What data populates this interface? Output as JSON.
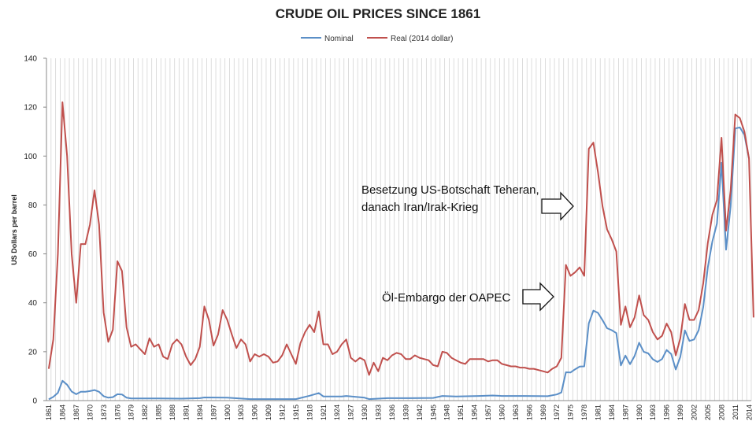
{
  "chart_data": {
    "type": "line",
    "title": "CRUDE OIL PRICES SINCE 1861",
    "ylabel": "US Dollars per barrel",
    "xlabel": "",
    "ylim": [
      0,
      140
    ],
    "yticks": [
      0,
      20,
      40,
      60,
      80,
      100,
      120,
      140
    ],
    "xlim": [
      1861,
      2014
    ],
    "xticks": [
      1861,
      1864,
      1867,
      1870,
      1873,
      1876,
      1879,
      1882,
      1885,
      1888,
      1891,
      1894,
      1897,
      1900,
      1903,
      1906,
      1909,
      1912,
      1915,
      1918,
      1921,
      1924,
      1927,
      1930,
      1933,
      1936,
      1939,
      1942,
      1945,
      1948,
      1951,
      1954,
      1957,
      1960,
      1963,
      1966,
      1969,
      1972,
      1975,
      1978,
      1981,
      1984,
      1987,
      1990,
      1993,
      1996,
      1999,
      2002,
      2005,
      2008,
      2011,
      2014
    ],
    "grid": "vertical",
    "legend_position": "top",
    "series": [
      {
        "name": "Nominal",
        "color": "#5b8fc7",
        "points": [
          [
            1861,
            0.5
          ],
          [
            1862,
            1.5
          ],
          [
            1863,
            3.2
          ],
          [
            1864,
            8.1
          ],
          [
            1865,
            6.5
          ],
          [
            1866,
            3.7
          ],
          [
            1867,
            2.6
          ],
          [
            1868,
            3.6
          ],
          [
            1869,
            3.6
          ],
          [
            1870,
            3.9
          ],
          [
            1871,
            4.3
          ],
          [
            1872,
            3.6
          ],
          [
            1873,
            1.8
          ],
          [
            1874,
            1.2
          ],
          [
            1875,
            1.4
          ],
          [
            1876,
            2.6
          ],
          [
            1877,
            2.5
          ],
          [
            1878,
            1.2
          ],
          [
            1879,
            0.9
          ],
          [
            1880,
            0.9
          ],
          [
            1885,
            0.9
          ],
          [
            1890,
            0.8
          ],
          [
            1894,
            1.0
          ],
          [
            1895,
            1.3
          ],
          [
            1900,
            1.2
          ],
          [
            1905,
            0.6
          ],
          [
            1910,
            0.6
          ],
          [
            1915,
            0.6
          ],
          [
            1918,
            2.0
          ],
          [
            1920,
            3.1
          ],
          [
            1921,
            1.7
          ],
          [
            1925,
            1.7
          ],
          [
            1926,
            1.9
          ],
          [
            1930,
            1.2
          ],
          [
            1931,
            0.6
          ],
          [
            1935,
            1.0
          ],
          [
            1940,
            1.0
          ],
          [
            1945,
            1.1
          ],
          [
            1947,
            1.9
          ],
          [
            1950,
            1.7
          ],
          [
            1955,
            1.9
          ],
          [
            1958,
            2.1
          ],
          [
            1960,
            1.9
          ],
          [
            1965,
            1.9
          ],
          [
            1970,
            1.8
          ],
          [
            1972,
            2.5
          ],
          [
            1973,
            3.3
          ],
          [
            1974,
            11.6
          ],
          [
            1975,
            11.5
          ],
          [
            1976,
            12.8
          ],
          [
            1977,
            13.9
          ],
          [
            1978,
            14.0
          ],
          [
            1979,
            31.6
          ],
          [
            1980,
            36.8
          ],
          [
            1981,
            35.9
          ],
          [
            1982,
            32.9
          ],
          [
            1983,
            29.6
          ],
          [
            1984,
            28.8
          ],
          [
            1985,
            27.6
          ],
          [
            1986,
            14.4
          ],
          [
            1987,
            18.4
          ],
          [
            1988,
            14.9
          ],
          [
            1989,
            18.2
          ],
          [
            1990,
            23.7
          ],
          [
            1991,
            20.0
          ],
          [
            1992,
            19.3
          ],
          [
            1993,
            16.9
          ],
          [
            1994,
            15.8
          ],
          [
            1995,
            17.0
          ],
          [
            1996,
            20.7
          ],
          [
            1997,
            19.1
          ],
          [
            1998,
            12.7
          ],
          [
            1999,
            17.9
          ],
          [
            2000,
            28.7
          ],
          [
            2001,
            24.4
          ],
          [
            2002,
            25.0
          ],
          [
            2003,
            28.8
          ],
          [
            2004,
            38.3
          ],
          [
            2005,
            54.5
          ],
          [
            2006,
            65.1
          ],
          [
            2007,
            72.4
          ],
          [
            2008,
            97.3
          ],
          [
            2009,
            61.7
          ],
          [
            2010,
            79.5
          ],
          [
            2011,
            111.3
          ],
          [
            2012,
            111.7
          ],
          [
            2013,
            108.7
          ],
          [
            2014,
            99.0
          ]
        ]
      },
      {
        "name": "Real (2014 dollar)",
        "color": "#c0504d",
        "points": [
          [
            1861,
            13
          ],
          [
            1862,
            25
          ],
          [
            1863,
            60
          ],
          [
            1864,
            122
          ],
          [
            1865,
            100
          ],
          [
            1866,
            60
          ],
          [
            1867,
            40
          ],
          [
            1868,
            64
          ],
          [
            1869,
            64
          ],
          [
            1870,
            72
          ],
          [
            1871,
            86
          ],
          [
            1872,
            72
          ],
          [
            1873,
            36
          ],
          [
            1874,
            24
          ],
          [
            1875,
            29
          ],
          [
            1876,
            57
          ],
          [
            1877,
            53
          ],
          [
            1878,
            30
          ],
          [
            1879,
            22
          ],
          [
            1880,
            23
          ],
          [
            1881,
            21
          ],
          [
            1882,
            19
          ],
          [
            1883,
            25.5
          ],
          [
            1884,
            22
          ],
          [
            1885,
            23
          ],
          [
            1886,
            18
          ],
          [
            1887,
            17
          ],
          [
            1888,
            23
          ],
          [
            1889,
            25
          ],
          [
            1890,
            23
          ],
          [
            1891,
            18
          ],
          [
            1892,
            14.5
          ],
          [
            1893,
            17
          ],
          [
            1894,
            22
          ],
          [
            1895,
            38.5
          ],
          [
            1896,
            33
          ],
          [
            1897,
            22.5
          ],
          [
            1898,
            27
          ],
          [
            1899,
            37
          ],
          [
            1900,
            33
          ],
          [
            1901,
            27
          ],
          [
            1902,
            21.5
          ],
          [
            1903,
            25
          ],
          [
            1904,
            23
          ],
          [
            1905,
            16
          ],
          [
            1906,
            19
          ],
          [
            1907,
            18
          ],
          [
            1908,
            19
          ],
          [
            1909,
            18
          ],
          [
            1910,
            15.5
          ],
          [
            1911,
            16
          ],
          [
            1912,
            18.5
          ],
          [
            1913,
            23
          ],
          [
            1914,
            19
          ],
          [
            1915,
            15
          ],
          [
            1916,
            23.5
          ],
          [
            1917,
            28
          ],
          [
            1918,
            31
          ],
          [
            1919,
            28
          ],
          [
            1920,
            36.5
          ],
          [
            1921,
            23
          ],
          [
            1922,
            23
          ],
          [
            1923,
            19
          ],
          [
            1924,
            20
          ],
          [
            1925,
            23
          ],
          [
            1926,
            25
          ],
          [
            1927,
            17.5
          ],
          [
            1928,
            16
          ],
          [
            1929,
            17.5
          ],
          [
            1930,
            16.5
          ],
          [
            1931,
            10.5
          ],
          [
            1932,
            15.5
          ],
          [
            1933,
            12
          ],
          [
            1934,
            17.5
          ],
          [
            1935,
            16.5
          ],
          [
            1936,
            18.5
          ],
          [
            1937,
            19.5
          ],
          [
            1938,
            19
          ],
          [
            1939,
            17
          ],
          [
            1940,
            17
          ],
          [
            1941,
            18.5
          ],
          [
            1942,
            17.5
          ],
          [
            1943,
            17
          ],
          [
            1944,
            16.5
          ],
          [
            1945,
            14.5
          ],
          [
            1946,
            14
          ],
          [
            1947,
            20
          ],
          [
            1948,
            19.5
          ],
          [
            1949,
            17.5
          ],
          [
            1950,
            16.5
          ],
          [
            1951,
            15.5
          ],
          [
            1952,
            15
          ],
          [
            1953,
            17
          ],
          [
            1954,
            17
          ],
          [
            1955,
            17
          ],
          [
            1956,
            17
          ],
          [
            1957,
            16
          ],
          [
            1958,
            16.5
          ],
          [
            1959,
            16.5
          ],
          [
            1960,
            15
          ],
          [
            1961,
            14.5
          ],
          [
            1962,
            14
          ],
          [
            1963,
            14
          ],
          [
            1964,
            13.5
          ],
          [
            1965,
            13.5
          ],
          [
            1966,
            13
          ],
          [
            1967,
            13
          ],
          [
            1968,
            12.5
          ],
          [
            1969,
            12
          ],
          [
            1970,
            11.5
          ],
          [
            1971,
            13
          ],
          [
            1972,
            14
          ],
          [
            1973,
            17.5
          ],
          [
            1974,
            55.5
          ],
          [
            1975,
            51
          ],
          [
            1976,
            52.5
          ],
          [
            1977,
            54.5
          ],
          [
            1978,
            51
          ],
          [
            1979,
            103
          ],
          [
            1980,
            105.5
          ],
          [
            1981,
            93.5
          ],
          [
            1982,
            79.5
          ],
          [
            1983,
            70
          ],
          [
            1984,
            66
          ],
          [
            1985,
            61
          ],
          [
            1986,
            31
          ],
          [
            1987,
            38.5
          ],
          [
            1988,
            30
          ],
          [
            1989,
            34
          ],
          [
            1990,
            43
          ],
          [
            1991,
            35
          ],
          [
            1992,
            33
          ],
          [
            1993,
            28
          ],
          [
            1994,
            25
          ],
          [
            1995,
            26.5
          ],
          [
            1996,
            31.5
          ],
          [
            1997,
            28
          ],
          [
            1998,
            18.5
          ],
          [
            1999,
            25.5
          ],
          [
            2000,
            39.5
          ],
          [
            2001,
            33
          ],
          [
            2002,
            33
          ],
          [
            2003,
            37
          ],
          [
            2004,
            48
          ],
          [
            2005,
            64.5
          ],
          [
            2006,
            76
          ],
          [
            2007,
            82
          ],
          [
            2008,
            107.5
          ],
          [
            2009,
            69.5
          ],
          [
            2010,
            86
          ],
          [
            2011,
            117
          ],
          [
            2012,
            115.5
          ],
          [
            2013,
            110
          ],
          [
            2014,
            99
          ],
          [
            2015,
            34
          ]
        ]
      }
    ],
    "annotations": [
      {
        "text_lines": [
          "Besetzung US-Botschaft Teheran,",
          "danach Iran/Irak-Krieg"
        ]
      },
      {
        "text_lines": [
          "Öl-Embargo der OAPEC"
        ]
      }
    ]
  }
}
